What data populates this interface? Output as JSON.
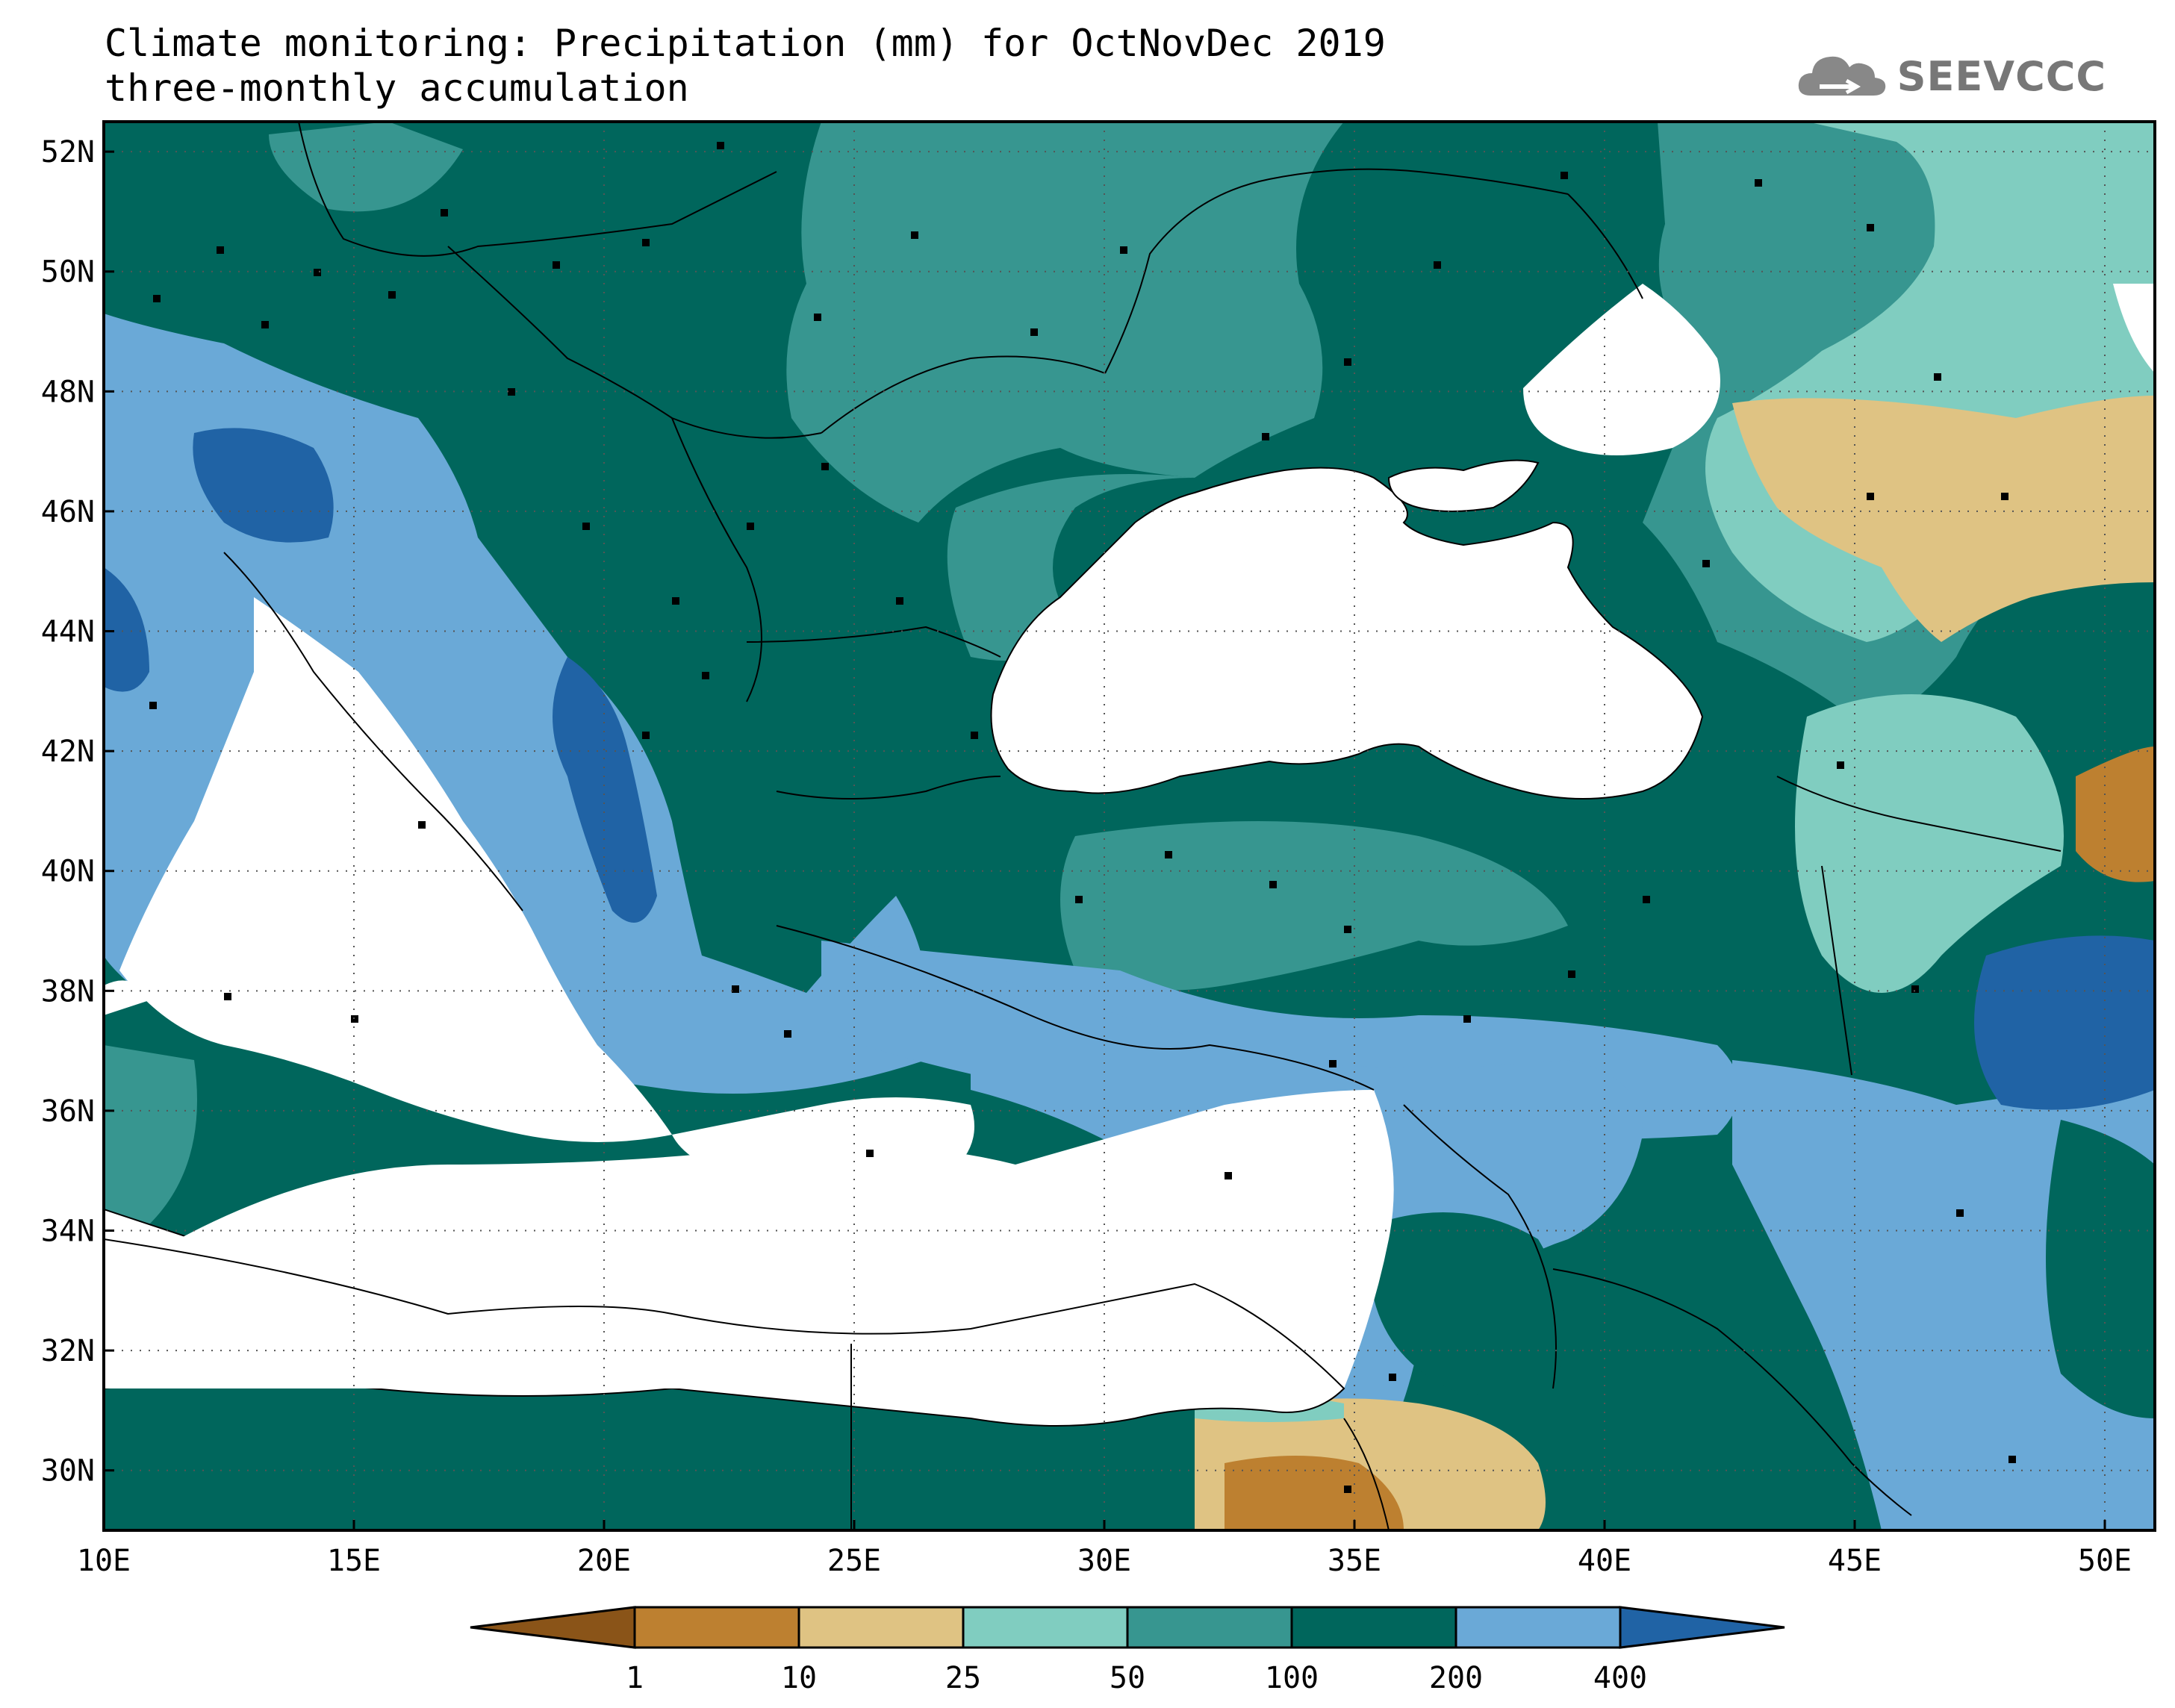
{
  "title": {
    "line1": "Climate monitoring: Precipitation (mm) for OctNovDec 2019",
    "line2": "three-monthly accumulation"
  },
  "logo": {
    "text": "SEEVCCC",
    "icon": "cloud-icon"
  },
  "map": {
    "lon_range": [
      10,
      51
    ],
    "lat_range": [
      29,
      52.5
    ],
    "x_ticks": [
      "10E",
      "15E",
      "20E",
      "25E",
      "30E",
      "35E",
      "40E",
      "45E",
      "50E"
    ],
    "y_ticks": [
      "30N",
      "32N",
      "34N",
      "36N",
      "38N",
      "40N",
      "42N",
      "44N",
      "46N",
      "48N",
      "50N",
      "52N"
    ],
    "grid": "dotted"
  },
  "colorbar": {
    "labels": [
      "1",
      "10",
      "25",
      "50",
      "100",
      "200",
      "400"
    ],
    "colors": [
      "#8a5418",
      "#bd8030",
      "#dfc383",
      "#80cdc0",
      "#379690",
      "#00665c",
      "#6aa9d7",
      "#2063a5"
    ]
  }
}
